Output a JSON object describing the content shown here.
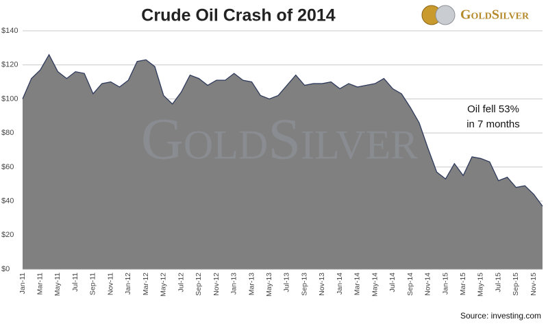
{
  "chart_data": {
    "type": "area",
    "title": "Crude Oil Crash of 2014",
    "logo": "GoldSilver",
    "watermark": "GoldSilver",
    "annotation": [
      "Oil fell 53%",
      "in 7 months"
    ],
    "source": "Source: investing.com",
    "categories": [
      "Jan-11",
      null,
      "Mar-11",
      null,
      "May-11",
      null,
      "Jul-11",
      null,
      "Sep-11",
      null,
      "Nov-11",
      null,
      "Jan-12",
      null,
      "Mar-12",
      null,
      "May-12",
      null,
      "Jul-12",
      null,
      "Sep-12",
      null,
      "Nov-12",
      null,
      "Jan-13",
      null,
      "Mar-13",
      null,
      "May-13",
      null,
      "Jul-13",
      null,
      "Sep-13",
      null,
      "Nov-13",
      null,
      "Jan-14",
      null,
      "Mar-14",
      null,
      "May-14",
      null,
      "Jul-14",
      null,
      "Sep-14",
      null,
      "Nov-14",
      null,
      "Jan-15",
      null,
      "Mar-15",
      null,
      "May-15",
      null,
      "Jul-15",
      null,
      "Sep-15",
      null,
      "Nov-15",
      null
    ],
    "series": [
      {
        "name": "Crude Oil",
        "color": "#808080",
        "line_color": "#2e3a5c",
        "values": [
          100,
          112,
          117,
          126,
          116,
          112,
          116,
          115,
          103,
          109,
          110,
          107,
          111,
          122,
          123,
          119,
          102,
          97,
          104,
          114,
          112,
          108,
          111,
          111,
          115,
          111,
          110,
          102,
          100,
          102,
          108,
          114,
          108,
          109,
          109,
          110,
          106,
          109,
          107,
          108,
          109,
          112,
          106,
          103,
          95,
          86,
          71,
          57,
          53,
          62,
          55,
          66,
          65,
          63,
          52,
          54,
          48,
          49,
          44,
          37
        ]
      }
    ],
    "ylim": [
      0,
      140
    ],
    "yticks": [
      {
        "value": 0,
        "label": "$0"
      },
      {
        "value": 20,
        "label": "$20"
      },
      {
        "value": 40,
        "label": "$40"
      },
      {
        "value": 60,
        "label": "$60"
      },
      {
        "value": 80,
        "label": "$80"
      },
      {
        "value": 100,
        "label": "$100"
      },
      {
        "value": 120,
        "label": "$120"
      },
      {
        "value": 140,
        "label": "$140"
      }
    ],
    "grid": true
  }
}
